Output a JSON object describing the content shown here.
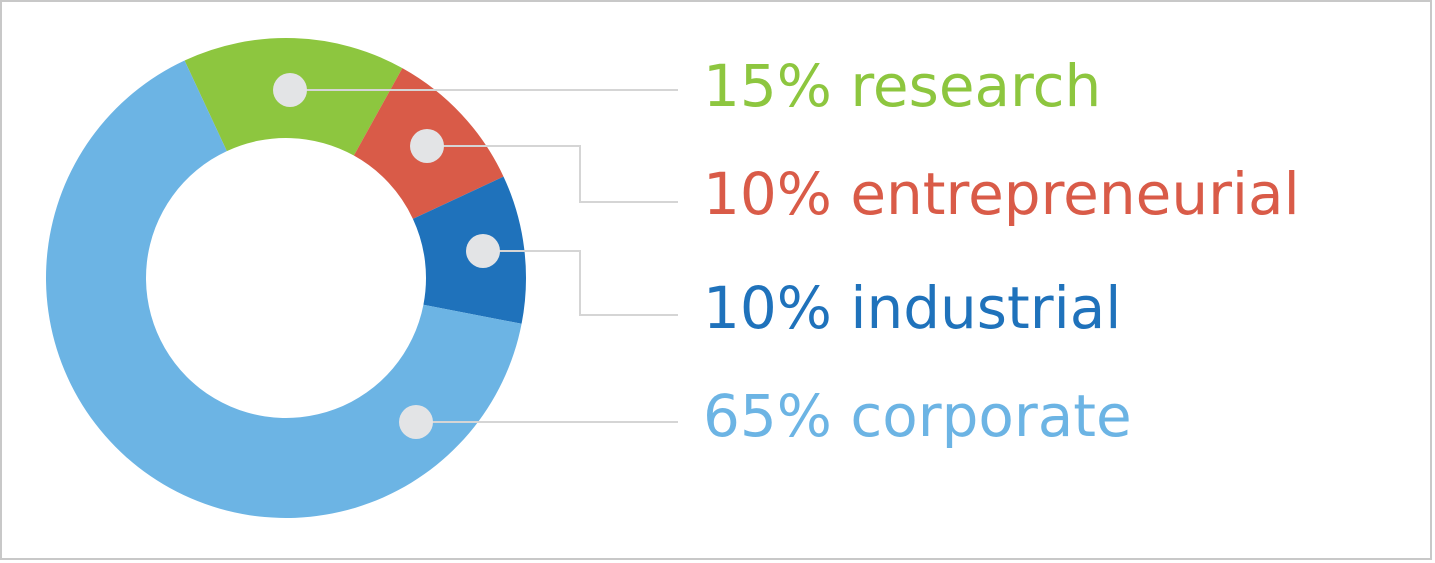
{
  "chart_data": {
    "type": "pie",
    "categories": [
      "research",
      "entrepreneurial",
      "industrial",
      "corporate"
    ],
    "values": [
      15,
      10,
      10,
      65
    ],
    "value_labels": [
      "15%",
      "10%",
      "10%",
      "65%"
    ],
    "colors": [
      "#8dc63f",
      "#d95b48",
      "#1f72bb",
      "#6cb4e4"
    ],
    "donut": true
  }
}
